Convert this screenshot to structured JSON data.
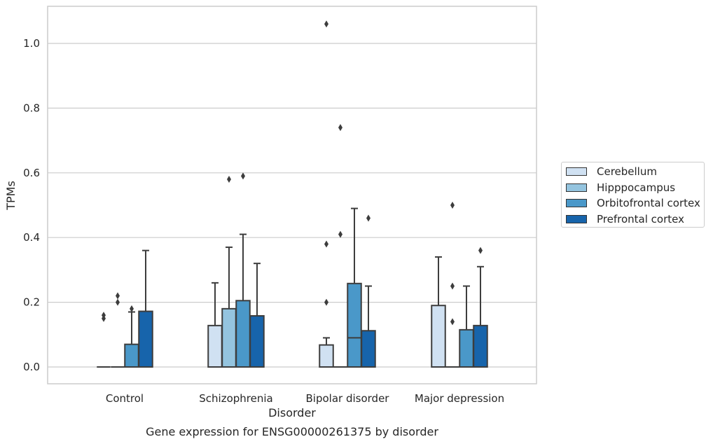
{
  "chart_data": {
    "type": "box",
    "caption": "Gene expression for ENSG00000261375 by disorder",
    "xlabel": "Disorder",
    "ylabel": "TPMs",
    "ylim": [
      -0.05,
      1.12
    ],
    "yticks": [
      0.0,
      0.2,
      0.4,
      0.6,
      0.8,
      1.0
    ],
    "ytick_labels": [
      "0.0",
      "0.2",
      "0.4",
      "0.6",
      "0.8",
      "1.0"
    ],
    "grid": true,
    "legend_position": "right",
    "categories": [
      "Control",
      "Schizophrenia",
      "Bipolar disorder",
      "Major depression"
    ],
    "series": [
      {
        "name": "Cerebellum",
        "color": "#d0e1f2",
        "boxes": [
          {
            "q1": 0.0,
            "median": 0.0,
            "q3": 0.0,
            "whislo": 0.0,
            "whishi": 0.0,
            "fliers": [
              0.15,
              0.16
            ]
          },
          {
            "q1": 0.0,
            "median": 0.0,
            "q3": 0.128,
            "whislo": 0.0,
            "whishi": 0.26,
            "fliers": []
          },
          {
            "q1": 0.0,
            "median": 0.0,
            "q3": 0.068,
            "whislo": 0.0,
            "whishi": 0.09,
            "fliers": [
              0.2,
              0.38,
              1.06
            ]
          },
          {
            "q1": 0.0,
            "median": 0.0,
            "q3": 0.19,
            "whislo": 0.0,
            "whishi": 0.34,
            "fliers": []
          }
        ]
      },
      {
        "name": "Hipppocampus",
        "color": "#94c4df",
        "boxes": [
          {
            "q1": 0.0,
            "median": 0.0,
            "q3": 0.0,
            "whislo": 0.0,
            "whishi": 0.0,
            "fliers": [
              0.2,
              0.22
            ]
          },
          {
            "q1": 0.0,
            "median": 0.0,
            "q3": 0.18,
            "whislo": 0.0,
            "whishi": 0.37,
            "fliers": [
              0.58
            ]
          },
          {
            "q1": 0.0,
            "median": 0.0,
            "q3": 0.0,
            "whislo": 0.0,
            "whishi": 0.0,
            "fliers": [
              0.41,
              0.74
            ]
          },
          {
            "q1": 0.0,
            "median": 0.0,
            "q3": 0.0,
            "whislo": 0.0,
            "whishi": 0.0,
            "fliers": [
              0.14,
              0.25,
              0.5
            ]
          }
        ]
      },
      {
        "name": "Orbitofrontal cortex",
        "color": "#4a98c9",
        "boxes": [
          {
            "q1": 0.0,
            "median": 0.0,
            "q3": 0.07,
            "whislo": 0.0,
            "whishi": 0.17,
            "fliers": [
              0.18
            ]
          },
          {
            "q1": 0.0,
            "median": 0.0,
            "q3": 0.205,
            "whislo": 0.0,
            "whishi": 0.41,
            "fliers": [
              0.59
            ]
          },
          {
            "q1": 0.0,
            "median": 0.09,
            "q3": 0.258,
            "whislo": 0.0,
            "whishi": 0.49,
            "fliers": []
          },
          {
            "q1": 0.0,
            "median": 0.0,
            "q3": 0.115,
            "whislo": 0.0,
            "whishi": 0.25,
            "fliers": []
          }
        ]
      },
      {
        "name": "Prefrontal cortex",
        "color": "#1764ab",
        "boxes": [
          {
            "q1": 0.0,
            "median": 0.0,
            "q3": 0.172,
            "whislo": 0.0,
            "whishi": 0.36,
            "fliers": []
          },
          {
            "q1": 0.0,
            "median": 0.0,
            "q3": 0.158,
            "whislo": 0.0,
            "whishi": 0.32,
            "fliers": []
          },
          {
            "q1": 0.0,
            "median": 0.0,
            "q3": 0.112,
            "whislo": 0.0,
            "whishi": 0.25,
            "fliers": [
              0.46
            ]
          },
          {
            "q1": 0.0,
            "median": 0.0,
            "q3": 0.128,
            "whislo": 0.0,
            "whishi": 0.31,
            "fliers": [
              0.36
            ]
          }
        ]
      }
    ]
  }
}
